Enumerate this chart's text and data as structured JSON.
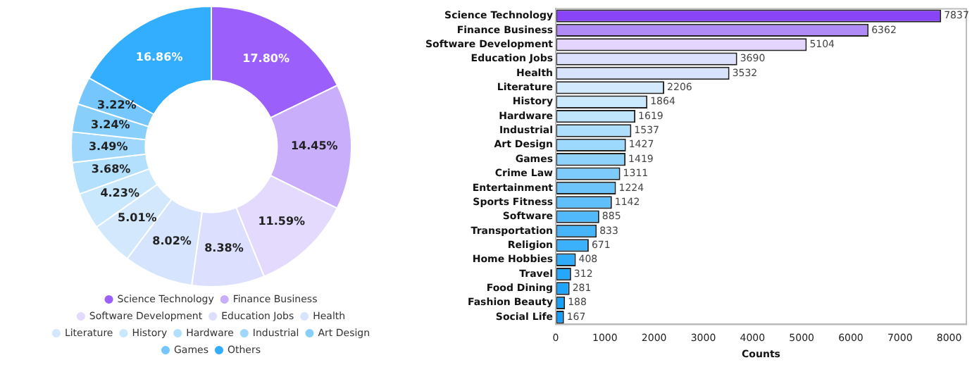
{
  "chart_data": [
    {
      "type": "donut",
      "categories": [
        "Science Technology",
        "Finance Business",
        "Software Development",
        "Education Jobs",
        "Health",
        "Literature",
        "History",
        "Hardware",
        "Industrial",
        "Art Design",
        "Games",
        "Others"
      ],
      "values": [
        17.8,
        14.45,
        11.59,
        8.38,
        8.02,
        5.01,
        4.23,
        3.68,
        3.49,
        3.24,
        3.22,
        16.86
      ],
      "value_labels": [
        "17.80%",
        "14.45%",
        "11.59%",
        "8.38%",
        "8.02%",
        "5.01%",
        "4.23%",
        "3.68%",
        "3.49%",
        "3.24%",
        "3.22%",
        "16.86%"
      ],
      "colors": [
        "#9b5ffc",
        "#c9aefc",
        "#e3dafd",
        "#dcdffd",
        "#d6e4fd",
        "#d3e8fd",
        "#c9e8fd",
        "#b3e0fd",
        "#9fd8fc",
        "#88cffc",
        "#74c6fc",
        "#33adfd"
      ],
      "legend": "bottom"
    },
    {
      "type": "bar",
      "orientation": "horizontal",
      "xlabel": "Counts",
      "categories": [
        "Science Technology",
        "Finance Business",
        "Software Development",
        "Education Jobs",
        "Health",
        "Literature",
        "History",
        "Hardware",
        "Industrial",
        "Art Design",
        "Games",
        "Crime Law",
        "Entertainment",
        "Sports Fitness",
        "Software",
        "Transportation",
        "Religion",
        "Home Hobbies",
        "Travel",
        "Food Dining",
        "Fashion Beauty",
        "Social Life"
      ],
      "values": [
        7837,
        6362,
        5104,
        3690,
        3532,
        2206,
        1864,
        1619,
        1537,
        1427,
        1419,
        1311,
        1224,
        1142,
        885,
        833,
        671,
        408,
        312,
        281,
        188,
        167
      ],
      "colors": [
        "#8a44f8",
        "#b08af5",
        "#e3d5fd",
        "#dde0fd",
        "#d8e4fd",
        "#d3e9fd",
        "#cbe9fd",
        "#bfe6fd",
        "#aee0fd",
        "#9dd9fc",
        "#8fd3fc",
        "#7ccbfb",
        "#6cc4fb",
        "#5ebffb",
        "#50b9fb",
        "#45b4fb",
        "#3bb0fb",
        "#2eabfb",
        "#25a7fb",
        "#1ea4fb",
        "#17a1fb",
        "#129ffb"
      ],
      "xlim": [
        0,
        8350
      ],
      "xticks": [
        0,
        1000,
        2000,
        3000,
        4000,
        5000,
        6000,
        7000,
        8000
      ],
      "data_labels": true,
      "grid": false,
      "legend": false
    }
  ]
}
